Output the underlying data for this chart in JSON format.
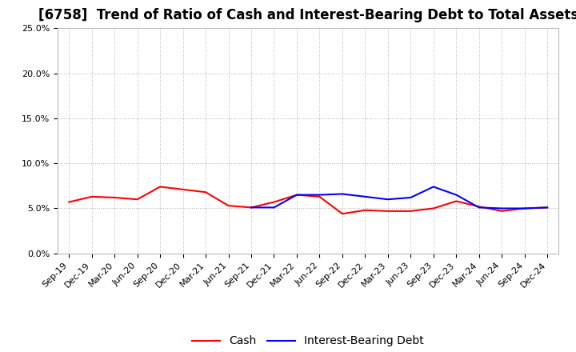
{
  "title": "[6758]  Trend of Ratio of Cash and Interest-Bearing Debt to Total Assets",
  "x_labels": [
    "Sep-19",
    "Dec-19",
    "Mar-20",
    "Jun-20",
    "Sep-20",
    "Dec-20",
    "Mar-21",
    "Jun-21",
    "Sep-21",
    "Dec-21",
    "Mar-22",
    "Jun-22",
    "Sep-22",
    "Dec-22",
    "Mar-23",
    "Jun-23",
    "Sep-23",
    "Dec-23",
    "Mar-24",
    "Jun-24",
    "Sep-24",
    "Dec-24"
  ],
  "cash": [
    0.057,
    0.063,
    0.062,
    0.06,
    0.074,
    0.071,
    0.068,
    0.053,
    0.051,
    0.057,
    0.065,
    0.063,
    0.044,
    0.048,
    0.047,
    0.047,
    0.05,
    0.058,
    0.052,
    0.047,
    0.05,
    0.051
  ],
  "debt": [
    null,
    null,
    null,
    null,
    null,
    null,
    null,
    null,
    0.051,
    0.051,
    0.065,
    0.065,
    0.066,
    0.063,
    0.06,
    0.062,
    0.074,
    0.065,
    0.051,
    0.05,
    0.05,
    0.051
  ],
  "cash_color": "#FF0000",
  "debt_color": "#0000FF",
  "background_color": "#FFFFFF",
  "plot_bg_color": "#FFFFFF",
  "grid_color": "#AAAAAA",
  "ylim": [
    0.0,
    0.25
  ],
  "yticks": [
    0.0,
    0.05,
    0.1,
    0.15,
    0.2,
    0.25
  ],
  "title_fontsize": 12,
  "legend_fontsize": 10,
  "tick_fontsize": 8
}
